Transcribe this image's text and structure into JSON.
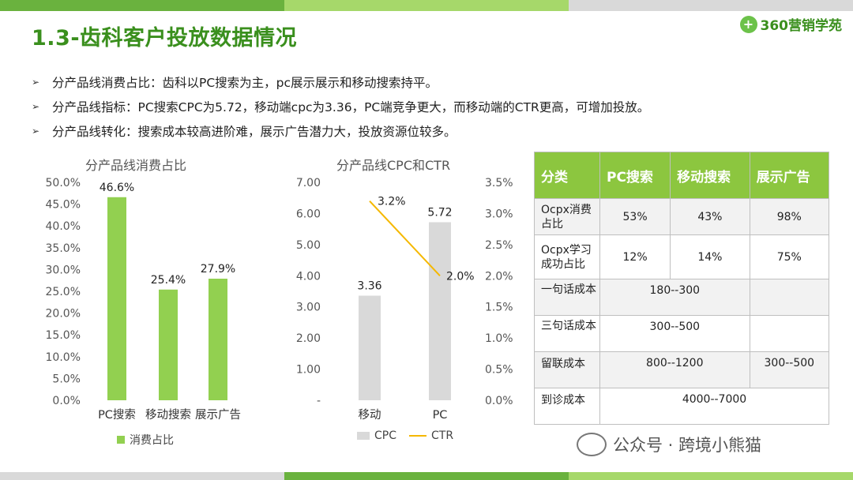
{
  "page": {
    "title": "1.3-齿科客户投放数据情况",
    "logo_text": "360营销学苑",
    "logo_mark": "+",
    "colors": {
      "accent": "#3a8f1d",
      "bar_green": "#92d050",
      "bar_gray": "#d9d9d9",
      "line_orange": "#f5b800",
      "table_head": "#8cc63f",
      "table_gray": "#f2f2f2"
    }
  },
  "bullets": [
    "分产品线消费占比：齿科以PC搜索为主，pc展示展示和移动搜索持平。",
    "分产品线指标：PC搜索CPC为5.72，移动端cpc为3.36，PC端竞争更大，而移动端的CTR更高，可增加投放。",
    "分产品线转化：搜索成本较高进阶难，展示广告潜力大，投放资源位较多。"
  ],
  "chart_data": [
    {
      "type": "bar",
      "title": "分产品线消费占比",
      "categories": [
        "PC搜索",
        "移动搜索",
        "展示广告"
      ],
      "series": [
        {
          "name": "消费占比",
          "values": [
            46.6,
            25.4,
            27.9
          ]
        }
      ],
      "data_labels": [
        "46.6%",
        "25.4%",
        "27.9%"
      ],
      "yticks": [
        "0.0%",
        "5.0%",
        "10.0%",
        "15.0%",
        "20.0%",
        "25.0%",
        "30.0%",
        "35.0%",
        "40.0%",
        "45.0%",
        "50.0%"
      ],
      "ylim": [
        0,
        50
      ],
      "grid": false,
      "legend": "bottom"
    },
    {
      "type": "bar",
      "title": "分产品线CPC和CTR",
      "categories": [
        "移动",
        "PC"
      ],
      "series": [
        {
          "name": "CPC",
          "type": "bar",
          "axis": "left",
          "values": [
            3.36,
            5.72
          ],
          "data_labels": [
            "3.36",
            "5.72"
          ]
        },
        {
          "name": "CTR",
          "type": "line",
          "axis": "right",
          "values": [
            3.2,
            2.0
          ],
          "data_labels": [
            "3.2%",
            "2.0%"
          ]
        }
      ],
      "yticks_left": [
        "-",
        "1.00",
        "2.00",
        "3.00",
        "4.00",
        "5.00",
        "6.00",
        "7.00"
      ],
      "ylim_left": [
        0,
        7
      ],
      "yticks_right": [
        "0.0%",
        "0.5%",
        "1.0%",
        "1.5%",
        "2.0%",
        "2.5%",
        "3.0%",
        "3.5%"
      ],
      "ylim_right": [
        0,
        3.5
      ],
      "grid": false,
      "legend": "bottom"
    }
  ],
  "table": {
    "headers": [
      "分类",
      "PC搜索",
      "移动搜索",
      "展示广告"
    ],
    "rows": [
      [
        "Ocpx消费占比",
        "53%",
        "43%",
        "98%"
      ],
      [
        "Ocpx学习成功占比",
        "12%",
        "14%",
        "75%"
      ],
      [
        "一句话成本",
        "180--300",
        ""
      ],
      [
        "三句话成本",
        "300--500",
        ""
      ],
      [
        "留联成本",
        "800--1200",
        "300--500"
      ],
      [
        "到诊成本",
        "4000--7000"
      ]
    ]
  },
  "watermark": {
    "text": "公众号 · 跨境小熊猫"
  }
}
